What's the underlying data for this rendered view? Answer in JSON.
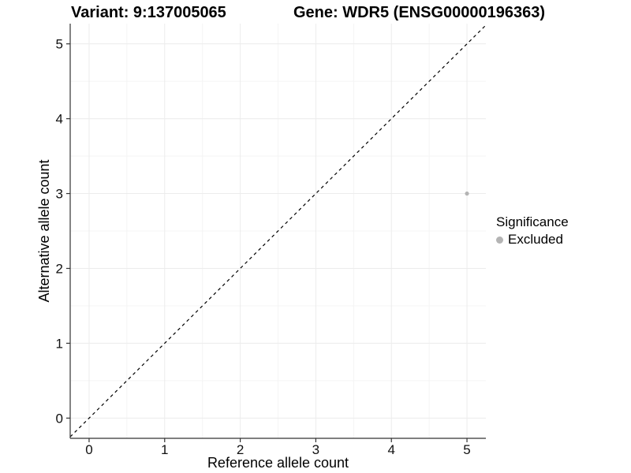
{
  "header": {
    "variant_title": "Variant: 9:137005065",
    "gene_title": "Gene: WDR5 (ENSG00000196363)"
  },
  "legend": {
    "title": "Significance",
    "items": [
      {
        "label": "Excluded",
        "color": "#b4b4b4"
      }
    ]
  },
  "chart_data": {
    "type": "scatter",
    "title": "Variant: 9:137005065   Gene: WDR5 (ENSG00000196363)",
    "xlabel": "Reference allele count",
    "ylabel": "Alternative allele count",
    "xlim": [
      -0.25,
      5.25
    ],
    "ylim": [
      -0.27,
      5.27
    ],
    "x_ticks": [
      0,
      1,
      2,
      3,
      4,
      5
    ],
    "y_ticks": [
      0,
      1,
      2,
      3,
      4,
      5
    ],
    "minor_ticks": [
      0.5,
      1.5,
      2.5,
      3.5,
      4.5
    ],
    "grid": true,
    "legend_position": "right",
    "points": [
      {
        "x": 5,
        "y": 3,
        "series": "Excluded"
      }
    ],
    "reference_line": {
      "style": "dashed",
      "slope": 1,
      "intercept": 0
    },
    "colors": {
      "point": "#b4b4b4",
      "grid_major": "#ececec",
      "grid_minor": "#f4f4f4",
      "axis_line": "#333333",
      "tick_mark": "#333333",
      "tick_label": "#1a1a1a",
      "reference_line": "#000000",
      "background": "#ffffff"
    }
  }
}
